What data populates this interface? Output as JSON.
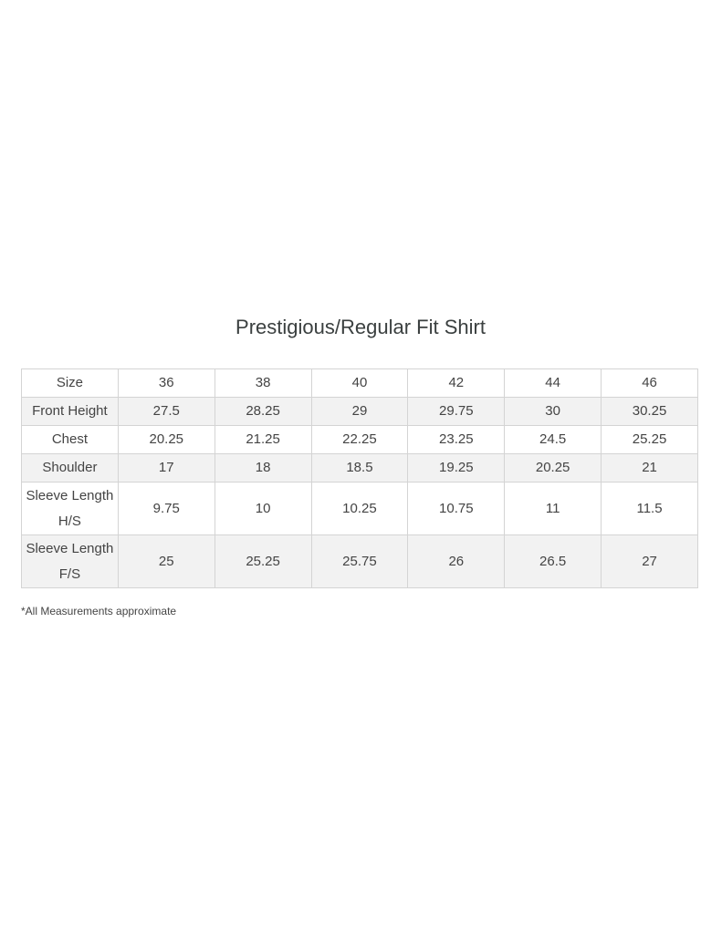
{
  "title": "Prestigious/Regular Fit Shirt",
  "table": {
    "header": [
      "Size",
      "36",
      "38",
      "40",
      "42",
      "44",
      "46"
    ],
    "rows": [
      [
        "Front Height",
        "27.5",
        "28.25",
        "29",
        "29.75",
        "30",
        "30.25"
      ],
      [
        "Chest",
        "20.25",
        "21.25",
        "22.25",
        "23.25",
        "24.5",
        "25.25"
      ],
      [
        "Shoulder",
        "17",
        "18",
        "18.5",
        "19.25",
        "20.25",
        "21"
      ],
      [
        "Sleeve Length H/S",
        "9.75",
        "10",
        "10.25",
        "10.75",
        "11",
        "11.5"
      ],
      [
        "Sleeve Length F/S",
        "25",
        "25.25",
        "25.75",
        "26",
        "26.5",
        "27"
      ]
    ]
  },
  "note": "*All Measurements approximate"
}
